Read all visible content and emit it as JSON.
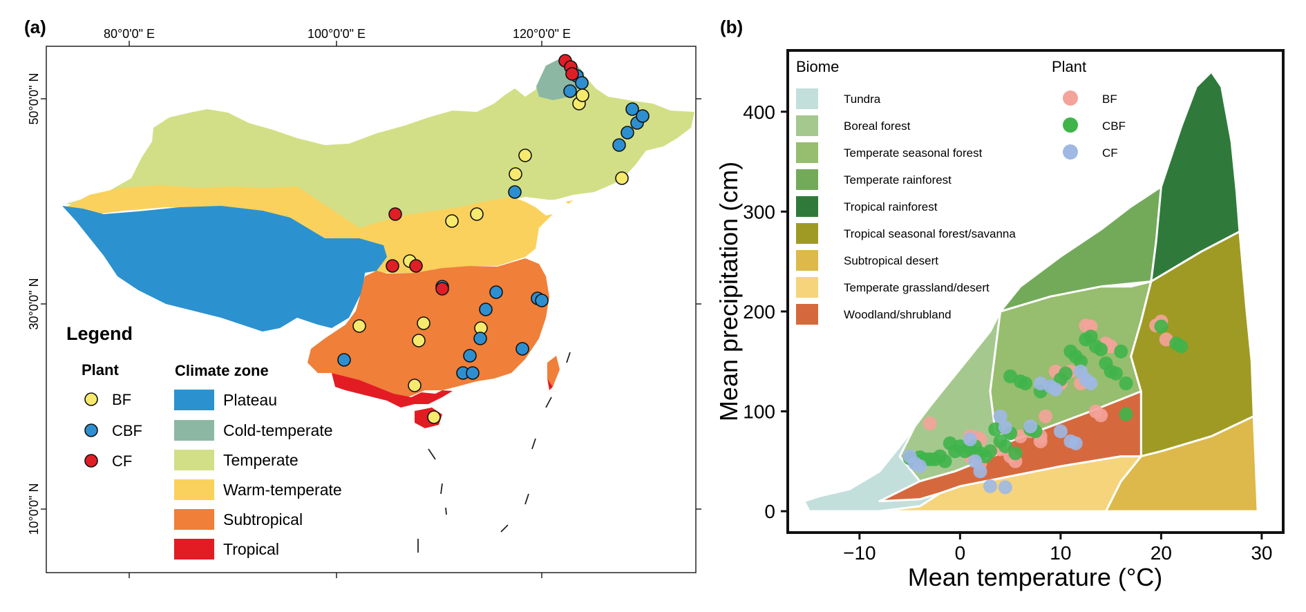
{
  "panel_a": {
    "label": "(a)",
    "lon_labels": [
      "80°0'0\" E",
      "100°0'0\" E",
      "120°0'0\" E"
    ],
    "lat_labels": [
      "50°0'0\" N",
      "30°0'0\" N",
      "10°0'0\" N"
    ],
    "legend": {
      "title": "Legend",
      "plant_header": "Plant",
      "zone_header": "Climate zone",
      "plants": [
        {
          "label": "BF",
          "color": "#f5ea6c"
        },
        {
          "label": "CBF",
          "color": "#2e8fd0"
        },
        {
          "label": "CF",
          "color": "#e01e26"
        }
      ],
      "zones": [
        {
          "label": "Plateau",
          "color": "#2b92cf"
        },
        {
          "label": "Cold-temperate",
          "color": "#8cb8a3"
        },
        {
          "label": "Temperate",
          "color": "#d3df86"
        },
        {
          "label": "Warm-temperate",
          "color": "#fad15c"
        },
        {
          "label": "Subtropical",
          "color": "#ef7f39"
        },
        {
          "label": "Tropical",
          "color": "#e31c23"
        }
      ]
    }
  },
  "panel_b": {
    "label": "(b)",
    "biome_header": "Biome",
    "plant_header": "Plant",
    "biomes": [
      {
        "label": "Tundra",
        "color": "#c3dfdc"
      },
      {
        "label": "Boreal forest",
        "color": "#a5c88e"
      },
      {
        "label": "Temperate seasonal forest",
        "color": "#97bd6e"
      },
      {
        "label": "Temperate rainforest",
        "color": "#73aa5a"
      },
      {
        "label": "Tropical rainforest",
        "color": "#2f7a3b"
      },
      {
        "label": "Tropical seasonal forest/savanna",
        "color": "#9f9a24"
      },
      {
        "label": "Subtropical desert",
        "color": "#dcb94a"
      },
      {
        "label": "Temperate grassland/desert",
        "color": "#f5d47c"
      },
      {
        "label": "Woodland/shrubland",
        "color": "#d5693d"
      }
    ],
    "plants": [
      {
        "label": "BF",
        "color": "#f4a39a"
      },
      {
        "label": "CBF",
        "color": "#3fb44a"
      },
      {
        "label": "CF",
        "color": "#9fb8e4"
      }
    ]
  },
  "chart_data": {
    "type": "scatter",
    "xlabel": "Mean temperature (°C)",
    "ylabel": "Mean precipitation (cm)",
    "xlim": [
      -17,
      32
    ],
    "ylim": [
      -20,
      460
    ],
    "xticks": [
      -10,
      0,
      10,
      20,
      30
    ],
    "yticks": [
      0,
      100,
      200,
      300,
      400
    ],
    "series": [
      {
        "name": "BF",
        "color": "#f4a39a",
        "points": [
          [
            -3,
            88
          ],
          [
            1,
            75
          ],
          [
            1.5,
            74
          ],
          [
            2,
            72
          ],
          [
            1,
            55
          ],
          [
            2,
            48
          ],
          [
            3,
            60
          ],
          [
            4,
            62
          ],
          [
            5,
            55
          ],
          [
            5.5,
            50
          ],
          [
            6,
            75
          ],
          [
            7,
            80
          ],
          [
            8,
            75
          ],
          [
            8.5,
            95
          ],
          [
            9,
            125
          ],
          [
            9.5,
            140
          ],
          [
            10,
            128
          ],
          [
            11,
            140
          ],
          [
            12,
            128
          ],
          [
            12.5,
            186
          ],
          [
            13,
            185
          ],
          [
            13.5,
            100
          ],
          [
            14,
            96
          ],
          [
            14.5,
            168
          ],
          [
            15,
            165
          ],
          [
            19.5,
            186
          ],
          [
            20,
            190
          ],
          [
            20.5,
            172
          ],
          [
            8,
            70
          ]
        ]
      },
      {
        "name": "CBF",
        "color": "#3fb44a",
        "points": [
          [
            -5,
            53
          ],
          [
            -4.5,
            50
          ],
          [
            -4,
            54
          ],
          [
            -3.5,
            52
          ],
          [
            -3,
            52
          ],
          [
            -2.5,
            52
          ],
          [
            -2,
            55
          ],
          [
            -1.5,
            50
          ],
          [
            -1,
            68
          ],
          [
            -0.5,
            60
          ],
          [
            0,
            65
          ],
          [
            0.5,
            60
          ],
          [
            1,
            62
          ],
          [
            1.5,
            65
          ],
          [
            2,
            58
          ],
          [
            2.5,
            55
          ],
          [
            3,
            60
          ],
          [
            3.5,
            82
          ],
          [
            4,
            70
          ],
          [
            4.5,
            65
          ],
          [
            5,
            78
          ],
          [
            5.5,
            58
          ],
          [
            6,
            130
          ],
          [
            6.5,
            128
          ],
          [
            7,
            82
          ],
          [
            7.5,
            80
          ],
          [
            8,
            120
          ],
          [
            9,
            125
          ],
          [
            10,
            132
          ],
          [
            10.5,
            138
          ],
          [
            11,
            160
          ],
          [
            11.5,
            155
          ],
          [
            12,
            150
          ],
          [
            12.5,
            172
          ],
          [
            13,
            175
          ],
          [
            13.5,
            165
          ],
          [
            14,
            162
          ],
          [
            14.5,
            148
          ],
          [
            15,
            140
          ],
          [
            15.5,
            138
          ],
          [
            16,
            160
          ],
          [
            16.5,
            128
          ],
          [
            16.5,
            97
          ],
          [
            20,
            185
          ],
          [
            21.5,
            168
          ],
          [
            22,
            165
          ],
          [
            5,
            135
          ]
        ]
      },
      {
        "name": "CF",
        "color": "#9fb8e4",
        "points": [
          [
            -5,
            55
          ],
          [
            -4.5,
            48
          ],
          [
            -4,
            45
          ],
          [
            1,
            72
          ],
          [
            1.5,
            50
          ],
          [
            2,
            40
          ],
          [
            3,
            25
          ],
          [
            4,
            95
          ],
          [
            4.5,
            84
          ],
          [
            4.5,
            24
          ],
          [
            7,
            85
          ],
          [
            8,
            128
          ],
          [
            9,
            125
          ],
          [
            10,
            80
          ],
          [
            11,
            70
          ],
          [
            11.5,
            68
          ],
          [
            12,
            140
          ],
          [
            12.5,
            132
          ],
          [
            13,
            128
          ],
          [
            9.5,
            122
          ]
        ]
      }
    ]
  }
}
